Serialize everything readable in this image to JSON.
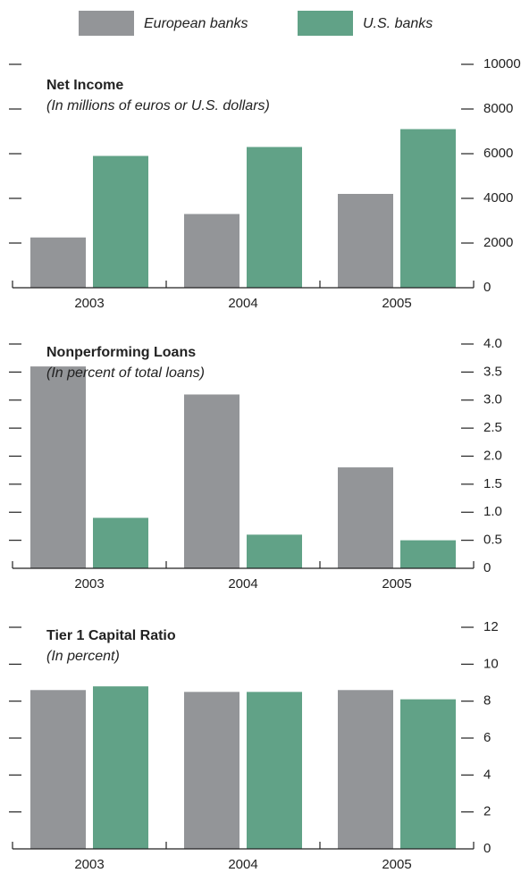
{
  "legend": [
    {
      "name": "European banks",
      "color": "#939598"
    },
    {
      "name": "U.S. banks",
      "color": "#61a287"
    }
  ],
  "chart_data": [
    {
      "type": "bar",
      "title": "Net Income",
      "subtitle": "(In millions of euros or U.S. dollars)",
      "categories": [
        "2003",
        "2004",
        "2005"
      ],
      "series": [
        {
          "values": [
            2250,
            3300,
            4200
          ]
        },
        {
          "values": [
            5900,
            6300,
            7100
          ]
        }
      ],
      "ylim": [
        0,
        10000
      ],
      "yticks": [
        0,
        2000,
        4000,
        6000,
        8000,
        10000
      ]
    },
    {
      "type": "bar",
      "title": "Nonperforming Loans",
      "subtitle": "(In percent of total loans)",
      "categories": [
        "2003",
        "2004",
        "2005"
      ],
      "series": [
        {
          "values": [
            3.6,
            3.1,
            1.8
          ]
        },
        {
          "values": [
            0.9,
            0.6,
            0.5
          ]
        }
      ],
      "ylim": [
        0,
        4
      ],
      "yticks": [
        0,
        0.5,
        {
          "value": 1,
          "label": "1.0"
        },
        1.5,
        {
          "value": 2,
          "label": "2.0"
        },
        2.5,
        {
          "value": 3,
          "label": "3.0"
        },
        3.5,
        {
          "value": 4,
          "label": "4.0"
        }
      ]
    },
    {
      "type": "bar",
      "title": "Tier 1 Capital Ratio",
      "subtitle": "(In percent)",
      "categories": [
        "2003",
        "2004",
        "2005"
      ],
      "series": [
        {
          "values": [
            8.6,
            8.5,
            8.6
          ]
        },
        {
          "values": [
            8.8,
            8.5,
            8.1
          ]
        }
      ],
      "ylim": [
        0,
        12
      ],
      "yticks": [
        0,
        2,
        4,
        6,
        8,
        10,
        12
      ]
    }
  ]
}
